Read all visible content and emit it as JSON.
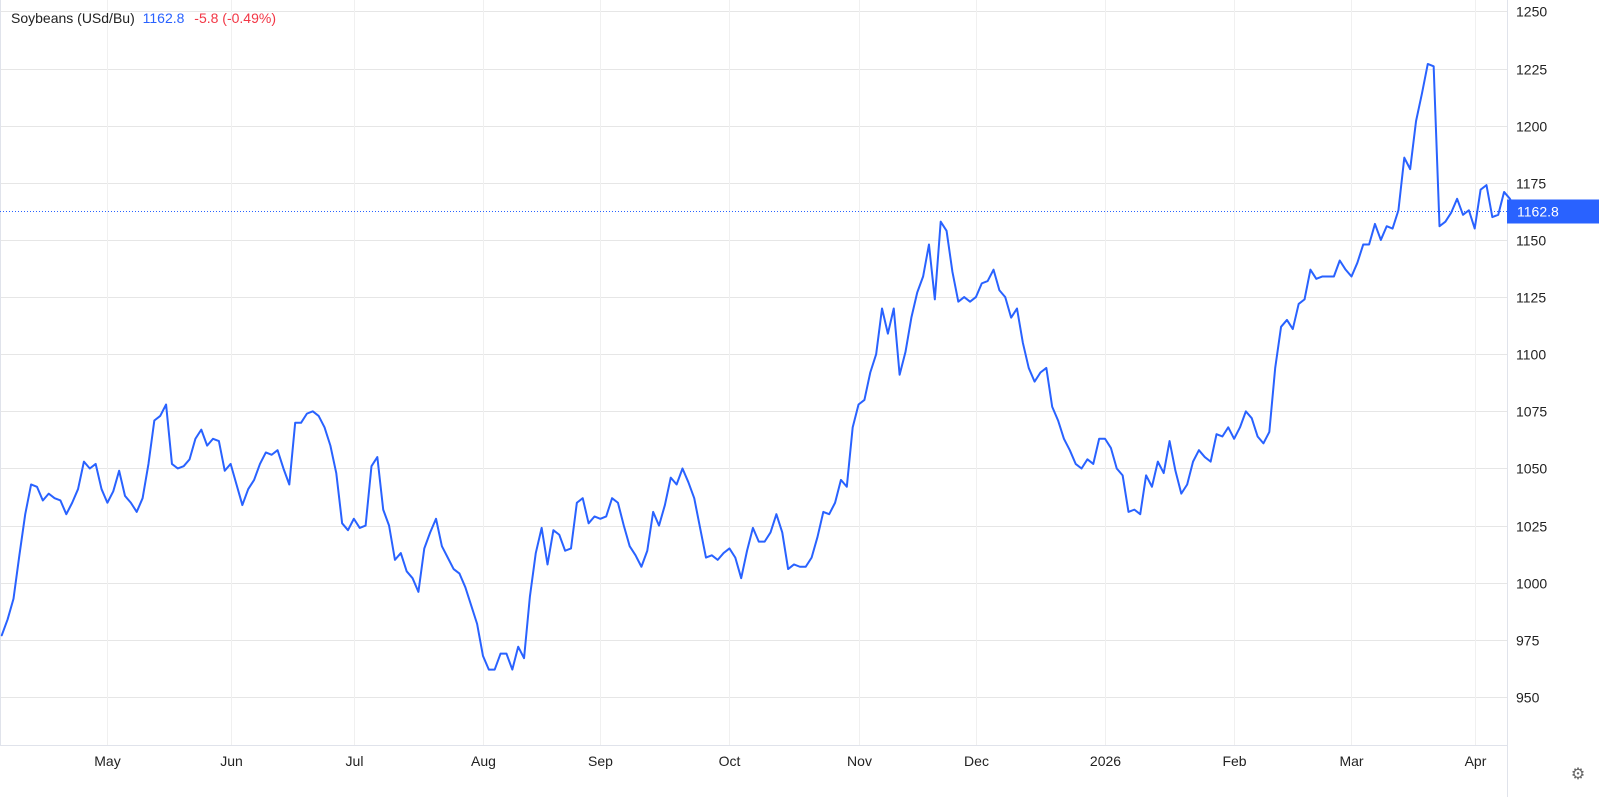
{
  "header": {
    "symbol": "Soybeans (USd/Bu)",
    "last": "1162.8",
    "change": "-5.8 (-0.49%)"
  },
  "price_tag": "1162.8",
  "icons": {
    "settings": "gear-icon"
  },
  "colors": {
    "line": "#2962ff",
    "negative": "#f23645",
    "grid": "#e6e6e6",
    "tag_bg": "#2962ff",
    "tag_text": "#ffffff"
  },
  "chart_data": {
    "type": "line",
    "title": "Soybeans (USd/Bu)",
    "xlabel": "",
    "ylabel": "",
    "ylim": [
      929,
      1255
    ],
    "yticks": [
      950,
      975,
      1000,
      1025,
      1050,
      1075,
      1100,
      1125,
      1150,
      1175,
      1200,
      1225,
      1250
    ],
    "xticks": [
      {
        "label": "May",
        "t": 18
      },
      {
        "label": "Jun",
        "t": 39
      },
      {
        "label": "Jul",
        "t": 60
      },
      {
        "label": "Aug",
        "t": 82
      },
      {
        "label": "Sep",
        "t": 102
      },
      {
        "label": "Oct",
        "t": 124
      },
      {
        "label": "Nov",
        "t": 146
      },
      {
        "label": "Dec",
        "t": 166
      },
      {
        "label": "2026",
        "t": 188
      },
      {
        "label": "Feb",
        "t": 210
      },
      {
        "label": "Mar",
        "t": 230
      },
      {
        "label": "Apr",
        "t": 251
      }
    ],
    "x_range": [
      -0.3,
      256.5
    ],
    "last_value": 1162.8,
    "grid": true,
    "series": [
      {
        "values": [
          977,
          984,
          993,
          1012,
          1030,
          1043,
          1042,
          1036,
          1039,
          1037,
          1036,
          1030,
          1035,
          1041,
          1053,
          1050,
          1052,
          1041,
          1035,
          1040,
          1049,
          1038,
          1035,
          1031,
          1037,
          1052,
          1071,
          1073,
          1078,
          1052,
          1050,
          1051,
          1054,
          1063,
          1067,
          1060,
          1063,
          1062,
          1049,
          1052,
          1043,
          1034,
          1041,
          1045,
          1052,
          1057,
          1056,
          1058,
          1050,
          1043,
          1070,
          1070,
          1074,
          1075,
          1073,
          1068,
          1060,
          1048,
          1026,
          1023,
          1028,
          1024,
          1025,
          1051,
          1055,
          1032,
          1025,
          1010,
          1013,
          1005,
          1002,
          996,
          1015,
          1022,
          1028,
          1016,
          1011,
          1006,
          1004,
          998,
          990,
          982,
          968,
          962,
          962,
          969,
          969,
          962,
          972,
          967,
          994,
          1013,
          1024,
          1008,
          1023,
          1021,
          1014,
          1015,
          1035,
          1037,
          1026,
          1029,
          1028,
          1029,
          1037,
          1035,
          1025,
          1016,
          1012,
          1007,
          1014,
          1031,
          1025,
          1034,
          1046,
          1043,
          1050,
          1044,
          1037,
          1024,
          1011,
          1012,
          1010,
          1013,
          1015,
          1011,
          1002,
          1014,
          1024,
          1018,
          1018,
          1022,
          1030,
          1022,
          1006,
          1008,
          1007,
          1007,
          1011,
          1020,
          1031,
          1030,
          1035,
          1045,
          1042,
          1068,
          1078,
          1080,
          1092,
          1100,
          1120,
          1109,
          1120,
          1091,
          1101,
          1116,
          1127,
          1134,
          1148,
          1124,
          1158,
          1154,
          1136,
          1123,
          1125,
          1123,
          1125,
          1131,
          1132,
          1137,
          1128,
          1125,
          1116,
          1120,
          1105,
          1094,
          1088,
          1092,
          1094,
          1077,
          1071,
          1063,
          1058,
          1052,
          1050,
          1054,
          1052,
          1063,
          1063,
          1059,
          1050,
          1047,
          1031,
          1032,
          1030,
          1047,
          1042,
          1053,
          1048,
          1062,
          1049,
          1039,
          1043,
          1053,
          1058,
          1055,
          1053,
          1065,
          1064,
          1068,
          1063,
          1068,
          1075,
          1072,
          1064,
          1061,
          1066,
          1094,
          1112,
          1115,
          1111,
          1122,
          1124,
          1137,
          1133,
          1134,
          1134,
          1134,
          1141,
          1137,
          1134,
          1140,
          1148,
          1148,
          1157,
          1150,
          1156,
          1155,
          1163,
          1186,
          1181,
          1202,
          1214,
          1227,
          1226,
          1156,
          1158,
          1162,
          1168,
          1161,
          1163,
          1155,
          1172,
          1174,
          1160,
          1161,
          1171,
          1168,
          1162.8
        ]
      }
    ]
  }
}
